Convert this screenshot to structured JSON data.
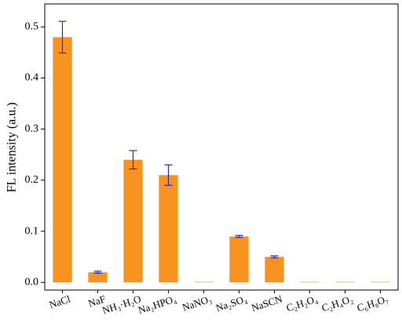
{
  "chart_data": {
    "type": "bar",
    "y_label": "FL intensity (a.u.)",
    "categories": [
      "NaCl",
      "NaF",
      "NH₃·H₂O",
      "Na₂HPO₄",
      "NaNO₃",
      "Na₂SO₄",
      "NaSCN",
      "C₂H₂O₄",
      "C₂H₄O₂",
      "C₆H₈O₇"
    ],
    "values": [
      0.48,
      0.02,
      0.24,
      0.21,
      0.001,
      0.09,
      0.05,
      0.001,
      0.001,
      0.001
    ],
    "errors": [
      0.031,
      0.002,
      0.018,
      0.02,
      null,
      0.002,
      0.002,
      null,
      null,
      null
    ],
    "color": "#f7931e",
    "error_color": "#2b2bb8",
    "ylim": [
      -0.015,
      0.545
    ],
    "yticks": [
      {
        "value": 0,
        "label": "0.0"
      },
      0.1,
      0.2,
      0.3,
      0.4,
      0.5
    ]
  }
}
